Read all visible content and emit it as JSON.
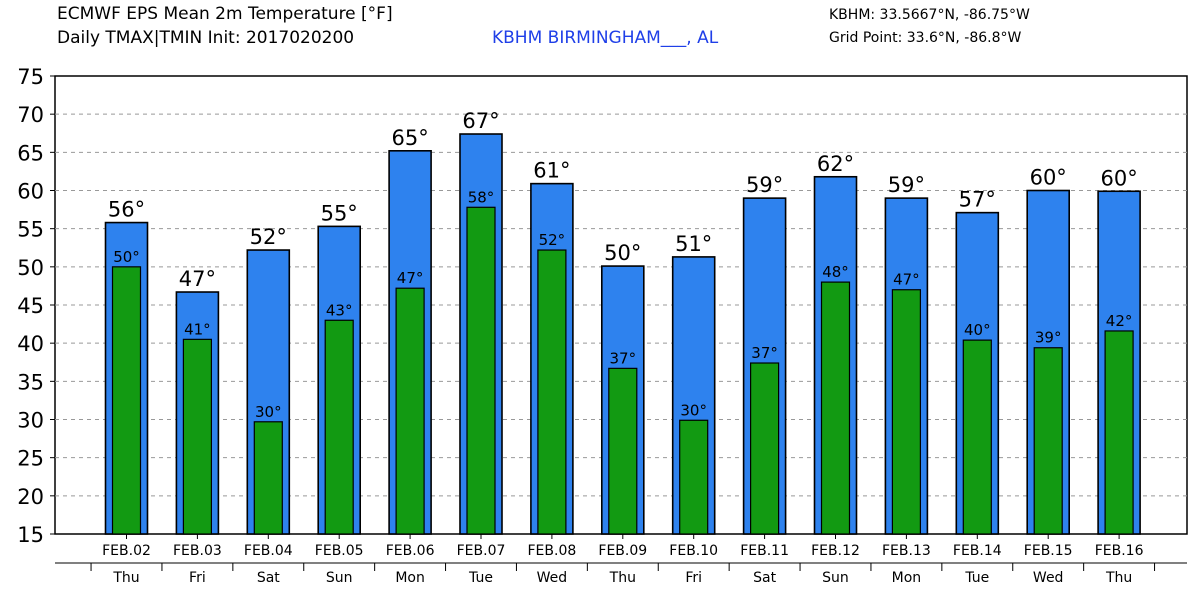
{
  "header": {
    "title_line1": "ECMWF EPS Mean 2m Temperature [°F]",
    "title_line2": "Daily TMAX|TMIN Init: 2017020200",
    "station": "KBHM BIRMINGHAM___, AL",
    "station_coords": "KBHM: 33.5667°N, -86.75°W",
    "grid_point": "Grid Point: 33.6°N, -86.8°W"
  },
  "colors": {
    "tmax_bar": "#2e82ee",
    "tmin_bar": "#129a12",
    "station_text": "#1f3fe8",
    "grid": "#999999"
  },
  "chart_data": {
    "type": "bar",
    "title": "ECMWF EPS Mean 2m Temperature [°F]",
    "ylim": [
      15,
      75
    ],
    "yticks": [
      15,
      20,
      25,
      30,
      35,
      40,
      45,
      50,
      55,
      60,
      65,
      70,
      75
    ],
    "grid": true,
    "categories": [
      "FEB.02",
      "FEB.03",
      "FEB.04",
      "FEB.05",
      "FEB.06",
      "FEB.07",
      "FEB.08",
      "FEB.09",
      "FEB.10",
      "FEB.11",
      "FEB.12",
      "FEB.13",
      "FEB.14",
      "FEB.15",
      "FEB.16"
    ],
    "weekdays": [
      "Thu",
      "Fri",
      "Sat",
      "Sun",
      "Mon",
      "Tue",
      "Wed",
      "Thu",
      "Fri",
      "Sat",
      "Sun",
      "Mon",
      "Tue",
      "Wed",
      "Thu"
    ],
    "series": [
      {
        "name": "TMAX",
        "values": [
          55.8,
          46.7,
          52.2,
          55.3,
          65.2,
          67.4,
          60.9,
          50.1,
          51.3,
          59.0,
          61.8,
          59.0,
          57.1,
          60.0,
          59.9
        ],
        "labels": [
          "56°",
          "47°",
          "52°",
          "55°",
          "65°",
          "67°",
          "61°",
          "50°",
          "51°",
          "59°",
          "62°",
          "59°",
          "57°",
          "60°",
          "60°"
        ]
      },
      {
        "name": "TMIN",
        "values": [
          50.0,
          40.5,
          29.7,
          43.0,
          47.2,
          57.8,
          52.2,
          36.7,
          29.9,
          37.4,
          48.0,
          47.0,
          40.4,
          39.4,
          41.6
        ],
        "labels": [
          "50°",
          "41°",
          "30°",
          "43°",
          "47°",
          "58°",
          "52°",
          "37°",
          "30°",
          "37°",
          "48°",
          "47°",
          "40°",
          "39°",
          "42°"
        ]
      }
    ]
  }
}
